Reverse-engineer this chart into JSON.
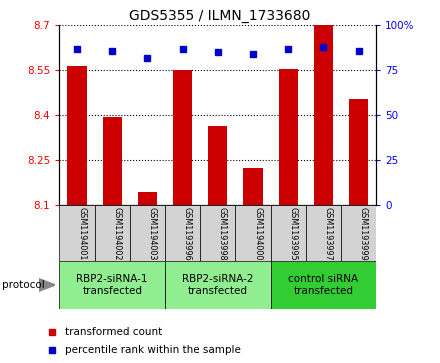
{
  "title": "GDS5355 / ILMN_1733680",
  "samples": [
    "GSM1194001",
    "GSM1194002",
    "GSM1194003",
    "GSM1193996",
    "GSM1193998",
    "GSM1194000",
    "GSM1193995",
    "GSM1193997",
    "GSM1193999"
  ],
  "bar_values": [
    8.565,
    8.395,
    8.145,
    8.55,
    8.365,
    8.225,
    8.555,
    8.7,
    8.455
  ],
  "percentile_values": [
    87,
    86,
    82,
    87,
    85,
    84,
    87,
    88,
    86
  ],
  "ylim_left": [
    8.1,
    8.7
  ],
  "ylim_right": [
    0,
    100
  ],
  "yticks_left": [
    8.1,
    8.25,
    8.4,
    8.55,
    8.7
  ],
  "yticks_right": [
    0,
    25,
    50,
    75,
    100
  ],
  "bar_color": "#cc0000",
  "dot_color": "#0000cc",
  "plot_bg_color": "#ffffff",
  "groups": [
    {
      "label": "RBP2-siRNA-1\ntransfected",
      "start": 0,
      "end": 3,
      "color": "#90ee90"
    },
    {
      "label": "RBP2-siRNA-2\ntransfected",
      "start": 3,
      "end": 6,
      "color": "#90ee90"
    },
    {
      "label": "control siRNA\ntransfected",
      "start": 6,
      "end": 9,
      "color": "#32cd32"
    }
  ],
  "legend_bar_label": "transformed count",
  "legend_dot_label": "percentile rank within the sample",
  "protocol_label": "protocol",
  "tick_label_bg": "#d3d3d3",
  "right_ytick_labels": [
    "0",
    "25",
    "50",
    "75",
    "100%"
  ]
}
